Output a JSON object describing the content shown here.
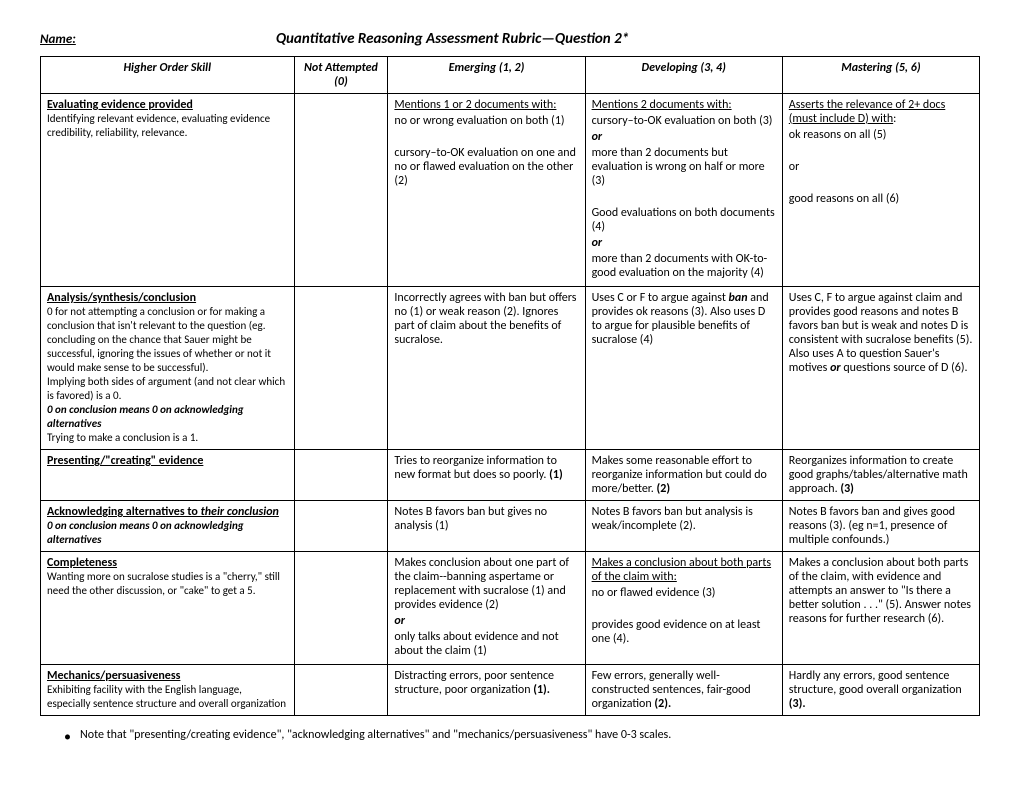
{
  "header": {
    "name_label": "Name:",
    "title": "Quantitative Reasoning Assessment Rubric—Question 2*"
  },
  "columns": [
    "Higher Order Skill",
    "Not Attempted (0)",
    "Emerging (1, 2)",
    "Developing (3, 4)",
    "Mastering  (5, 6)"
  ],
  "rows": {
    "r0": {
      "skill_title": "Evaluating evidence provided",
      "skill_desc": "Identifying relevant evidence, evaluating evidence credibility, reliability, relevance.",
      "emerging_u": "Mentions 1 or 2 documents with:",
      "emerging_p1": "no or wrong evaluation on both (1)",
      "emerging_p2": "cursory–to-OK evaluation on one and no or flawed evaluation on the other (2)",
      "developing_u": "Mentions 2 documents with:",
      "developing_p1": "cursory–to-OK evaluation on both (3)",
      "developing_or1": "or",
      "developing_p2": "more than 2 documents but evaluation is wrong on half or more (3)",
      "developing_p3": "Good evaluations on both documents (4)",
      "developing_or2": "or",
      "developing_p4": "more than 2 documents with OK-to-good evaluation on the majority (4)",
      "mastering_u1": "Asserts the relevance of 2+ docs",
      "mastering_u1b": " (must include D) with",
      "mastering_u1c": ":",
      "mastering_p1": "ok reasons on all (5)",
      "mastering_p2": "or",
      "mastering_p3": "good reasons on all (6)"
    },
    "r1": {
      "skill_title": "Analysis/synthesis/conclusion",
      "skill_desc1": "0 for not attempting a conclusion or for making a conclusion that isn't relevant to the question (eg. concluding on the chance that Sauer might be successful, ignoring the issues of whether or not it would make sense to be successful).",
      "skill_desc2": "Implying both sides of argument (and not clear which is favored) is a 0.",
      "skill_desc3": "0 on conclusion means 0 on acknowledging alternatives",
      "skill_desc4": "Trying to make a conclusion is a 1.",
      "emerging": "Incorrectly agrees with ban but offers no (1) or weak reason (2).  Ignores part of claim about the benefits of sucralose.",
      "developing_a": "Uses C or F to argue against ",
      "developing_b": "ban",
      "developing_c": " and provides ok reasons (3). Also uses D to argue for plausible benefits of sucralose (4)",
      "mastering_a": "Uses C, F to argue against claim and provides good reasons and notes B favors ban but is weak and notes D is consistent with sucralose benefits (5). Also uses A to question Sauer's motives ",
      "mastering_b": "or",
      "mastering_c": " questions source of D (6)."
    },
    "r2": {
      "skill_title": "Presenting/\"creating\" evidence",
      "emerging_a": "Tries to reorganize information to new format but does so poorly. ",
      "emerging_b": "(1)",
      "developing_a": "Makes some reasonable effort to reorganize information but could do more/better. ",
      "developing_b": "(2)",
      "mastering_a": "Reorganizes information to create good graphs/tables/alternative math approach. ",
      "mastering_b": "(3)"
    },
    "r3": {
      "skill_title_a": "Acknowledging alternatives to ",
      "skill_title_b": "their conclusion",
      "skill_desc": "0 on conclusion means 0 on acknowledging alternatives",
      "emerging": "Notes B favors ban but gives no analysis (1)",
      "developing": "Notes B favors ban but analysis is weak/incomplete (2).",
      "mastering": "Notes B favors ban and gives good reasons (3). (eg n=1, presence of multiple confounds.)"
    },
    "r4": {
      "skill_title": "Completeness",
      "skill_desc": "Wanting more on sucralose studies is a \"cherry,\" still need the other discussion, or \"cake\" to get a 5.",
      "emerging_p1": "Makes conclusion about one part of the claim--banning aspertame or replacement with sucralose (1) and provides evidence (2)",
      "emerging_or": "or",
      "emerging_p2": "only talks about  evidence and not about the claim (1)",
      "developing_u": "Makes a conclusion about both parts of the claim with:",
      "developing_p1": "no or flawed evidence (3)",
      "developing_p2": "provides good evidence on at least one (4).",
      "mastering": "Makes a conclusion about both parts of the claim, with evidence and attempts an answer to \"Is there a better solution . . .\" (5).  Answer notes reasons for further research (6)."
    },
    "r5": {
      "skill_title": "Mechanics/persuasiveness",
      "skill_desc": "Exhibiting facility with the English language, especially sentence structure and overall organization",
      "emerging_a": "Distracting errors, poor sentence structure, poor organization ",
      "emerging_b": "(1).",
      "developing_a": "Few errors, generally well-constructed sentences, fair-good organization ",
      "developing_b": "(2).",
      "mastering_a": "Hardly any errors, good sentence structure, good overall organization ",
      "mastering_b": "(3)."
    }
  },
  "footnote": "Note that \"presenting/creating evidence\", \"acknowledging alternatives\" and \"mechanics/persuasiveness\" have 0-3 scales."
}
